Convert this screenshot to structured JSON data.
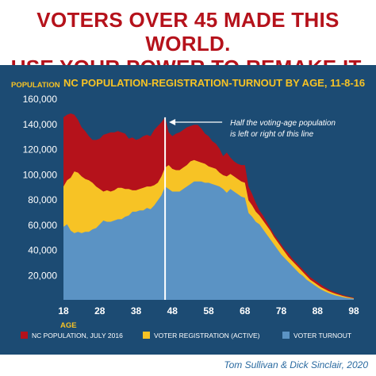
{
  "headline": {
    "line1": "VOTERS OVER 45 MADE THIS WORLD.",
    "line2": "USE YOUR POWER TO REMAKE IT."
  },
  "credit": "Tom Sullivan & Dick Sinclair, 2020",
  "colors": {
    "population": "#b5121b",
    "registration": "#f7c325",
    "turnout": "#5b93c4",
    "panel": "#1c4b73",
    "accent_text": "#f7c325",
    "axis_text": "#ffffff",
    "headline": "#b5121b"
  },
  "chart_data": {
    "type": "area",
    "title": "NC POPULATION-REGISTRATION-TURNOUT BY AGE, 11-8-16",
    "ylabel": "POPULATION",
    "xlabel": "AGE",
    "xlim": [
      18,
      98
    ],
    "ylim": [
      0,
      160000
    ],
    "xticks": [
      18,
      28,
      38,
      48,
      58,
      68,
      78,
      88,
      98
    ],
    "yticks": [
      20000,
      40000,
      60000,
      80000,
      100000,
      120000,
      140000,
      160000
    ],
    "ytick_labels": [
      "20,000",
      "40,000",
      "60,000",
      "80,000",
      "100,000",
      "120,000",
      "140,000",
      "160,000"
    ],
    "grid": false,
    "legend_position": "bottom",
    "annotation": {
      "x": 46,
      "text_line1": "Half the voting-age population",
      "text_line2": "is left or right of this line"
    },
    "x": [
      18,
      19,
      20,
      21,
      22,
      23,
      24,
      25,
      26,
      27,
      28,
      29,
      30,
      31,
      32,
      33,
      34,
      35,
      36,
      37,
      38,
      39,
      40,
      41,
      42,
      43,
      44,
      45,
      46,
      47,
      48,
      49,
      50,
      51,
      52,
      53,
      54,
      55,
      56,
      57,
      58,
      59,
      60,
      61,
      62,
      63,
      64,
      65,
      66,
      67,
      68,
      69,
      70,
      71,
      72,
      73,
      74,
      75,
      76,
      77,
      78,
      79,
      80,
      81,
      82,
      83,
      84,
      85,
      86,
      87,
      88,
      89,
      90,
      91,
      92,
      93,
      94,
      95,
      96,
      97,
      98
    ],
    "series": [
      {
        "name": "NC POPULATION, JULY 2016",
        "values": [
          145000,
          147000,
          148000,
          147000,
          143000,
          137000,
          134000,
          130000,
          127000,
          127000,
          128000,
          131000,
          132000,
          133000,
          133000,
          134000,
          133000,
          132000,
          128000,
          129000,
          127000,
          128000,
          130000,
          131000,
          130000,
          135000,
          138000,
          141000,
          145000,
          133000,
          130000,
          132000,
          133000,
          135000,
          137000,
          138000,
          139000,
          139000,
          136000,
          132000,
          130000,
          126000,
          124000,
          120000,
          114000,
          117000,
          113000,
          110000,
          108000,
          107000,
          107000,
          90000,
          84000,
          77000,
          71000,
          67000,
          62000,
          57000,
          52000,
          48000,
          44000,
          40000,
          37000,
          33000,
          30000,
          27000,
          24000,
          21000,
          18000,
          16000,
          14000,
          12000,
          10000,
          8500,
          7000,
          5800,
          4800,
          3800,
          3000,
          2300,
          1700
        ]
      },
      {
        "name": "VOTER REGISTRATION (ACTIVE)",
        "values": [
          90000,
          95000,
          97000,
          102000,
          101000,
          98000,
          96000,
          95000,
          93000,
          90000,
          88000,
          86000,
          87000,
          86000,
          87000,
          89000,
          89000,
          88000,
          88000,
          87000,
          87000,
          88000,
          89000,
          90000,
          90000,
          91000,
          93000,
          98000,
          105000,
          107000,
          104000,
          103000,
          103000,
          105000,
          107000,
          110000,
          111000,
          110000,
          109000,
          108000,
          106000,
          105000,
          104000,
          101000,
          99000,
          98000,
          100000,
          98000,
          96000,
          94000,
          93000,
          79000,
          75000,
          70000,
          67000,
          63000,
          59000,
          55000,
          50000,
          46000,
          42000,
          38000,
          34000,
          31000,
          28000,
          25000,
          22000,
          19000,
          16000,
          14000,
          12000,
          10000,
          8500,
          7000,
          5800,
          4800,
          3900,
          3100,
          2400,
          1800,
          1300
        ]
      },
      {
        "name": "VOTER TURNOUT",
        "values": [
          58000,
          60000,
          55000,
          53000,
          54000,
          53000,
          54000,
          54000,
          56000,
          57000,
          60000,
          63000,
          62000,
          62000,
          63000,
          64000,
          64000,
          66000,
          67000,
          70000,
          70000,
          71000,
          71000,
          73000,
          72000,
          75000,
          79000,
          83000,
          90000,
          88000,
          86000,
          86000,
          86000,
          88000,
          90000,
          92000,
          94000,
          94000,
          94000,
          93000,
          93000,
          92000,
          91000,
          90000,
          88000,
          85000,
          88000,
          86000,
          84000,
          82000,
          81000,
          69000,
          66000,
          62000,
          60000,
          56000,
          52000,
          48000,
          44000,
          40000,
          36000,
          33000,
          30000,
          27000,
          24000,
          21000,
          19000,
          16000,
          14000,
          12000,
          10000,
          8200,
          6800,
          5500,
          4400,
          3500,
          2800,
          2100,
          1600,
          1200,
          900
        ]
      }
    ]
  }
}
